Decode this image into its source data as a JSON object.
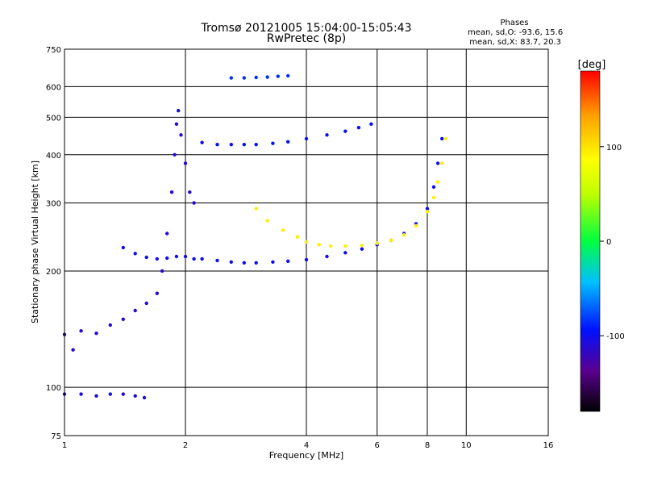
{
  "header": {
    "title_line1": "Tromsø 20121005 15:04:00-15:05:43",
    "title_line2": "RwPretec (8p)"
  },
  "phase_box": {
    "heading": "Phases",
    "line1": "mean, sd,O: -93.6, 15.6",
    "line2": "mean, sd,X: 83.7, 20.3"
  },
  "colors": {
    "background": "#ffffff",
    "grid": "#000000",
    "o_mode": "#1e3cff",
    "x_mode": "#e6e61e"
  },
  "colorbar": {
    "label": "[deg]",
    "ticks": [
      {
        "value": 100,
        "label": "100"
      },
      {
        "value": 0,
        "label": "0"
      },
      {
        "value": -100,
        "label": "-100"
      }
    ],
    "range": [
      -180,
      180
    ],
    "colormap": [
      "#000000",
      "#5a0090",
      "#0010ff",
      "#00c0ff",
      "#00ff40",
      "#c0ff00",
      "#ffff00",
      "#ffa000",
      "#ff0000"
    ]
  },
  "chart_data": {
    "type": "scatter",
    "title": "Tromsø 20121005 15:04:00-15:05:43",
    "subtitle": "RwPretec (8p)",
    "xlabel": "Frequency [MHz]",
    "ylabel": "Stationary phase Virtual Height [km]",
    "xscale": "log",
    "yscale": "log",
    "xlim": [
      1,
      16
    ],
    "ylim": [
      75,
      750
    ],
    "xticks": [
      1,
      2,
      4,
      6,
      8,
      10,
      16
    ],
    "xtick_labels": [
      "1",
      "2",
      "4",
      "6",
      "8",
      "10",
      "16"
    ],
    "yticks": [
      75,
      100,
      200,
      300,
      400,
      500,
      600,
      750
    ],
    "ytick_labels": [
      "75",
      "100",
      "200",
      "300",
      "400",
      "500",
      "600",
      "750"
    ],
    "grid": true,
    "color_scale": "phase [deg]",
    "series": [
      {
        "points": [
          [
            1.0,
            96
          ],
          [
            1.1,
            96
          ],
          [
            1.2,
            95
          ],
          [
            1.3,
            96
          ],
          [
            1.4,
            96
          ],
          [
            1.5,
            95
          ],
          [
            1.58,
            94
          ]
        ],
        "phase": -105
      },
      {
        "points": [
          [
            1.0,
            137
          ],
          [
            1.05,
            125
          ],
          [
            1.1,
            140
          ],
          [
            1.2,
            138
          ],
          [
            1.3,
            145
          ],
          [
            1.4,
            150
          ],
          [
            1.5,
            158
          ],
          [
            1.6,
            165
          ],
          [
            1.7,
            175
          ],
          [
            1.75,
            200
          ],
          [
            1.8,
            250
          ],
          [
            1.85,
            320
          ],
          [
            1.88,
            400
          ],
          [
            1.9,
            480
          ],
          [
            1.92,
            520
          ],
          [
            1.95,
            450
          ],
          [
            2.0,
            380
          ],
          [
            2.05,
            320
          ],
          [
            2.1,
            300
          ]
        ],
        "phase": -110
      },
      {
        "points": [
          [
            1.4,
            230
          ],
          [
            1.5,
            222
          ],
          [
            1.6,
            217
          ],
          [
            1.7,
            215
          ],
          [
            1.8,
            216
          ],
          [
            1.9,
            218
          ],
          [
            2.0,
            218
          ],
          [
            2.1,
            215
          ],
          [
            2.2,
            215
          ],
          [
            2.4,
            213
          ],
          [
            2.6,
            211
          ],
          [
            2.8,
            210
          ],
          [
            3.0,
            210
          ],
          [
            3.3,
            211
          ],
          [
            3.6,
            212
          ],
          [
            4.0,
            214
          ],
          [
            4.5,
            218
          ],
          [
            5.0,
            223
          ],
          [
            5.5,
            228
          ],
          [
            6.0,
            234
          ],
          [
            6.5,
            240
          ],
          [
            7.0,
            250
          ],
          [
            7.5,
            265
          ],
          [
            8.0,
            290
          ],
          [
            8.3,
            330
          ],
          [
            8.5,
            380
          ],
          [
            8.7,
            440
          ]
        ],
        "phase": -100
      },
      {
        "points": [
          [
            2.2,
            430
          ],
          [
            2.4,
            425
          ],
          [
            2.6,
            425
          ],
          [
            2.8,
            425
          ],
          [
            3.0,
            425
          ],
          [
            3.3,
            428
          ],
          [
            3.6,
            432
          ],
          [
            4.0,
            440
          ],
          [
            4.5,
            450
          ],
          [
            5.0,
            460
          ],
          [
            5.4,
            470
          ],
          [
            5.8,
            480
          ]
        ],
        "phase": -95
      },
      {
        "points": [
          [
            2.6,
            632
          ],
          [
            2.8,
            632
          ],
          [
            3.0,
            634
          ],
          [
            3.2,
            635
          ],
          [
            3.4,
            638
          ],
          [
            3.6,
            640
          ]
        ],
        "phase": -85
      },
      {
        "points": [
          [
            3.0,
            290
          ],
          [
            3.2,
            270
          ],
          [
            3.5,
            255
          ],
          [
            3.8,
            245
          ],
          [
            4.0,
            238
          ],
          [
            4.3,
            234
          ],
          [
            4.6,
            232
          ],
          [
            5.0,
            232
          ],
          [
            5.5,
            233
          ],
          [
            6.0,
            236
          ],
          [
            6.5,
            240
          ],
          [
            7.0,
            248
          ],
          [
            7.5,
            262
          ],
          [
            8.0,
            285
          ],
          [
            8.3,
            310
          ],
          [
            8.5,
            340
          ],
          [
            8.7,
            380
          ],
          [
            8.9,
            440
          ]
        ],
        "phase": 95
      }
    ]
  }
}
